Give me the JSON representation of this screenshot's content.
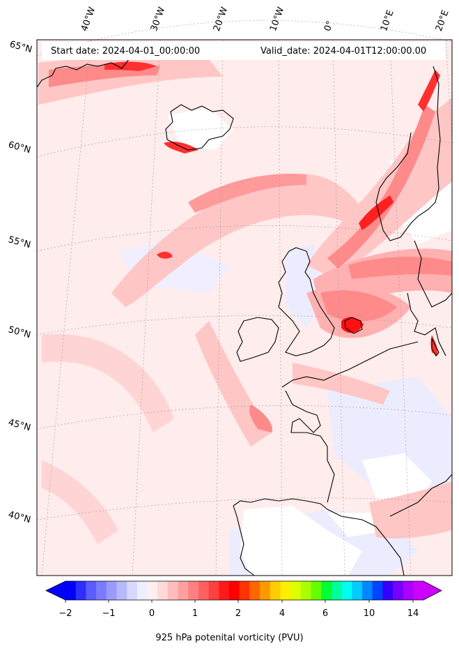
{
  "header": {
    "start_date": "Start date: 2024-04-01_00:00:00",
    "valid_date": "Valid_date: 2024-04-01T12:00:00.00"
  },
  "lon_labels": [
    "40°W",
    "30°W",
    "20°W",
    "10°W",
    "0°",
    "10°E",
    "20°E"
  ],
  "lat_labels": [
    "65°N",
    "60°N",
    "55°N",
    "50°N",
    "45°N",
    "40°N"
  ],
  "colorbar": {
    "label": "925 hPa potenital vorticity (PVU)",
    "ticks": [
      "−2",
      "−1",
      "0",
      "1",
      "2",
      "4",
      "6",
      "10",
      "14"
    ],
    "colors": [
      "#0000ff",
      "#2e2eff",
      "#5c5cff",
      "#7b7bff",
      "#9a9aff",
      "#b8b8ff",
      "#d8d8ff",
      "#eeeeff",
      "#ffeeee",
      "#ffd8d8",
      "#ffbcbc",
      "#ffa0a0",
      "#ff8080",
      "#ff6060",
      "#ff4040",
      "#ff1a1a",
      "#ff0000",
      "#ff3300",
      "#ff6600",
      "#ff9900",
      "#ffcc00",
      "#ffee00",
      "#ddff00",
      "#aaff00",
      "#66ff00",
      "#00ff33",
      "#00ff99",
      "#00ffee",
      "#00ccff",
      "#0088ff",
      "#0044ff",
      "#3300ff",
      "#7700ff",
      "#aa00ff",
      "#cc00ff"
    ]
  },
  "colors": {
    "background": "#ffecec",
    "light_red": "#ffc6c6",
    "mid_red": "#ff8a8a",
    "strong_red": "#ff2a2a",
    "light_blue": "#e8e8ff",
    "coast": "#000000"
  }
}
